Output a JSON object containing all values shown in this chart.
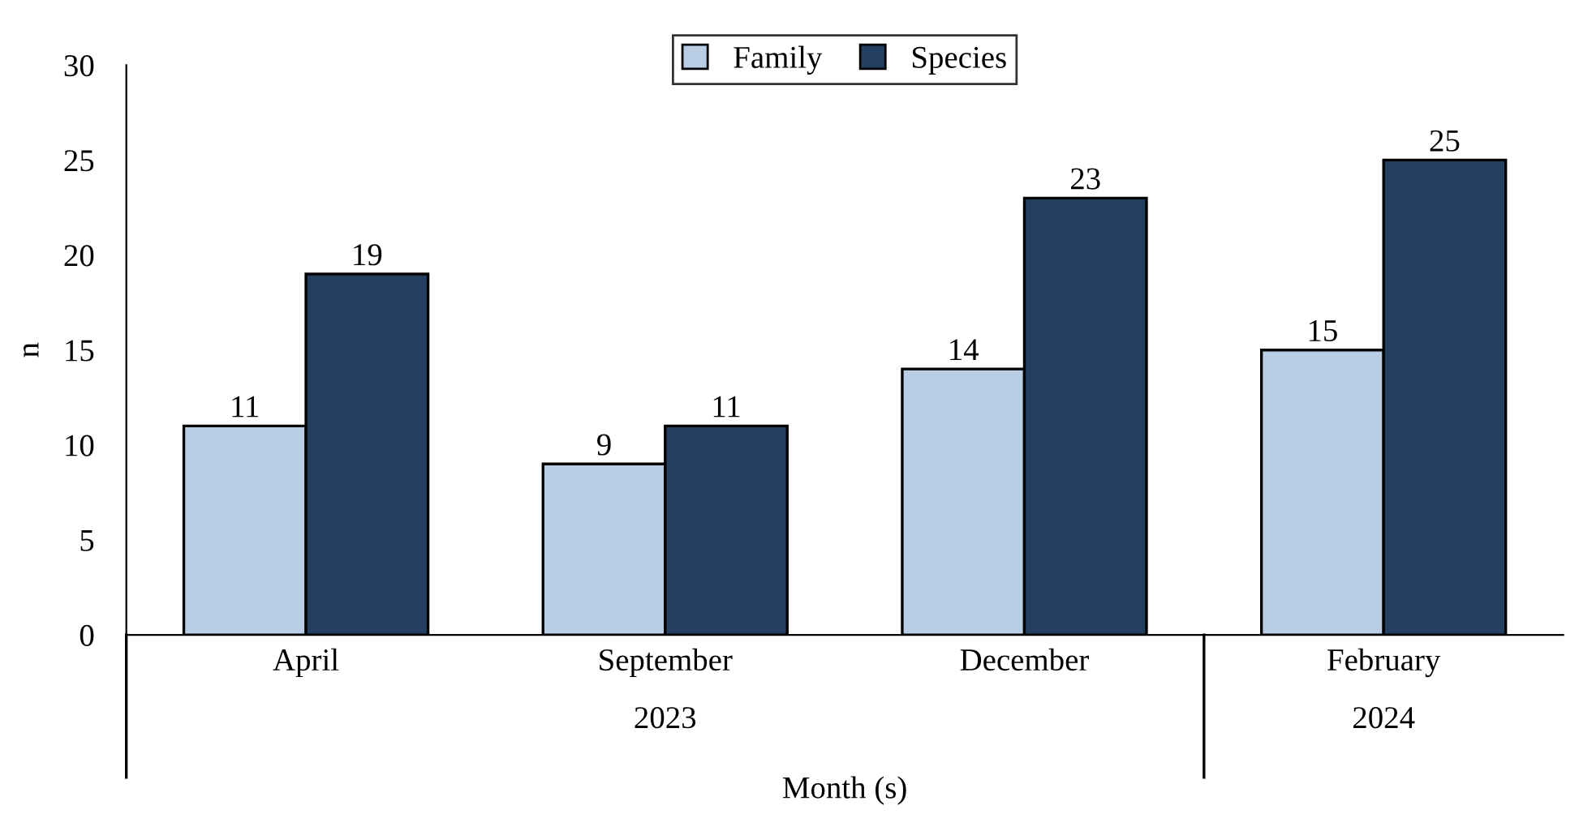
{
  "chart_data": {
    "type": "bar",
    "xlabel": "Month (s)",
    "ylabel": "n",
    "categories": [
      "April",
      "September",
      "December",
      "February"
    ],
    "series": [
      {
        "name": "Family",
        "color": "#b9cde5",
        "values": [
          11,
          9,
          14,
          15
        ]
      },
      {
        "name": "Species",
        "color": "#243f60",
        "values": [
          19,
          11,
          23,
          25
        ]
      }
    ],
    "ylim": [
      0,
      30
    ],
    "yticks": [
      0,
      5,
      10,
      15,
      20,
      25,
      30
    ],
    "grid": false,
    "legend": "top",
    "data_labels": true,
    "annotations": [
      "2023",
      "2024"
    ]
  }
}
